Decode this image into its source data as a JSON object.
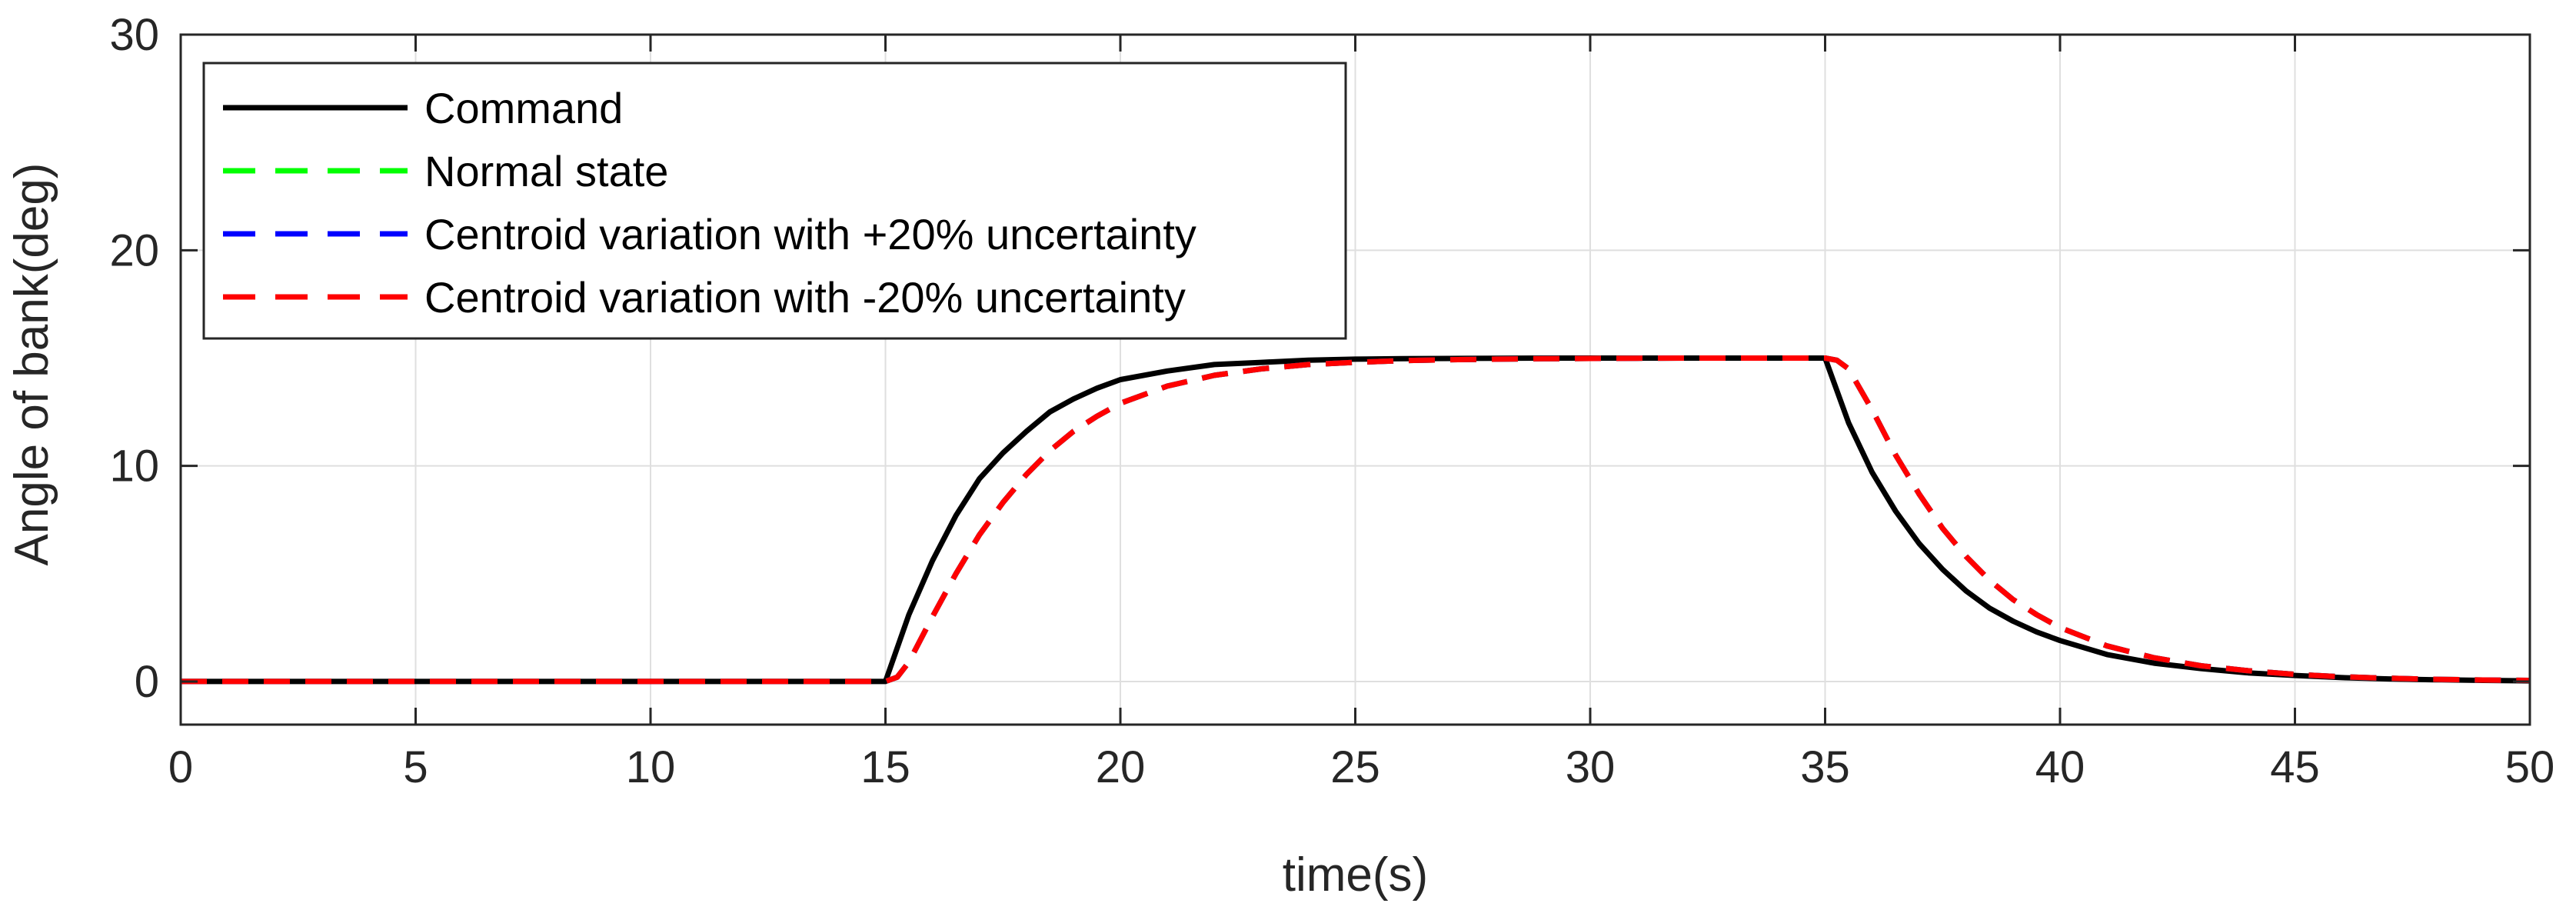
{
  "chart_data": {
    "type": "line",
    "title": "",
    "xlabel": "time(s)",
    "ylabel": "Angle of bank(deg)",
    "xlim": [
      0,
      50
    ],
    "ylim": [
      -2,
      30
    ],
    "xticks": [
      0,
      5,
      10,
      15,
      20,
      25,
      30,
      35,
      40,
      45,
      50
    ],
    "yticks": [
      0,
      10,
      20,
      30
    ],
    "grid": true,
    "legend_position": "top-left",
    "series": [
      {
        "name": "Command",
        "color": "#000000",
        "style": "solid",
        "x": [
          0,
          15,
          15.5,
          16,
          16.5,
          17,
          17.5,
          18,
          18.5,
          19,
          19.5,
          20,
          21,
          22,
          23,
          24,
          25,
          26,
          27,
          28,
          29,
          30,
          31,
          32,
          33,
          34,
          35,
          35.5,
          36,
          36.5,
          37,
          37.5,
          38,
          38.5,
          39,
          39.5,
          40,
          41,
          42,
          43,
          44,
          45,
          46,
          47,
          48,
          49,
          50
        ],
        "y": [
          0,
          0,
          3.1,
          5.6,
          7.7,
          9.4,
          10.6,
          11.6,
          12.5,
          13.1,
          13.6,
          14.0,
          14.4,
          14.7,
          14.8,
          14.9,
          14.95,
          14.97,
          14.98,
          14.99,
          15.0,
          15.0,
          15.0,
          15.0,
          15.0,
          15.0,
          15.0,
          12.0,
          9.7,
          7.9,
          6.4,
          5.2,
          4.2,
          3.4,
          2.8,
          2.3,
          1.9,
          1.25,
          0.85,
          0.6,
          0.4,
          0.28,
          0.18,
          0.12,
          0.08,
          0.05,
          0.03
        ]
      },
      {
        "name": "Normal state",
        "color": "#00ff00",
        "style": "dashed",
        "x": [
          0,
          15,
          15.25,
          15.5,
          16,
          16.5,
          17,
          17.5,
          18,
          18.5,
          19,
          19.5,
          20,
          21,
          22,
          23,
          24,
          25,
          26,
          27,
          28,
          29,
          30,
          31,
          32,
          33,
          34,
          35,
          35.25,
          35.5,
          36,
          36.5,
          37,
          37.5,
          38,
          38.5,
          39,
          39.5,
          40,
          41,
          42,
          43,
          44,
          45,
          46,
          47,
          48,
          49,
          50
        ],
        "y": [
          0,
          0,
          0.2,
          0.9,
          3.0,
          5.0,
          6.8,
          8.3,
          9.6,
          10.7,
          11.6,
          12.3,
          12.9,
          13.7,
          14.2,
          14.5,
          14.7,
          14.8,
          14.88,
          14.92,
          14.95,
          14.97,
          14.98,
          14.99,
          15.0,
          15.0,
          15.0,
          15.0,
          14.9,
          14.5,
          12.6,
          10.5,
          8.7,
          7.1,
          5.8,
          4.7,
          3.8,
          3.1,
          2.5,
          1.65,
          1.1,
          0.73,
          0.5,
          0.33,
          0.22,
          0.15,
          0.1,
          0.07,
          0.05
        ]
      },
      {
        "name": "Centroid variation with +20% uncertainty",
        "color": "#0000ff",
        "style": "dashed",
        "x": [
          0,
          15,
          15.25,
          15.5,
          16,
          16.5,
          17,
          17.5,
          18,
          18.5,
          19,
          19.5,
          20,
          21,
          22,
          23,
          24,
          25,
          26,
          27,
          28,
          29,
          30,
          31,
          32,
          33,
          34,
          35,
          35.25,
          35.5,
          36,
          36.5,
          37,
          37.5,
          38,
          38.5,
          39,
          39.5,
          40,
          41,
          42,
          43,
          44,
          45,
          46,
          47,
          48,
          49,
          50
        ],
        "y": [
          0,
          0,
          0.2,
          0.9,
          3.0,
          5.0,
          6.8,
          8.3,
          9.6,
          10.7,
          11.6,
          12.3,
          12.9,
          13.7,
          14.2,
          14.5,
          14.7,
          14.8,
          14.88,
          14.92,
          14.95,
          14.97,
          14.98,
          14.99,
          15.0,
          15.0,
          15.0,
          15.0,
          14.9,
          14.5,
          12.6,
          10.5,
          8.7,
          7.1,
          5.8,
          4.7,
          3.8,
          3.1,
          2.5,
          1.65,
          1.1,
          0.73,
          0.5,
          0.33,
          0.22,
          0.15,
          0.1,
          0.07,
          0.05
        ]
      },
      {
        "name": "Centroid variation with -20% uncertainty",
        "color": "#ff0000",
        "style": "dashed",
        "x": [
          0,
          15,
          15.25,
          15.5,
          16,
          16.5,
          17,
          17.5,
          18,
          18.5,
          19,
          19.5,
          20,
          21,
          22,
          23,
          24,
          25,
          26,
          27,
          28,
          29,
          30,
          31,
          32,
          33,
          34,
          35,
          35.25,
          35.5,
          36,
          36.5,
          37,
          37.5,
          38,
          38.5,
          39,
          39.5,
          40,
          41,
          42,
          43,
          44,
          45,
          46,
          47,
          48,
          49,
          50
        ],
        "y": [
          0,
          0,
          0.2,
          0.9,
          3.0,
          5.0,
          6.8,
          8.3,
          9.6,
          10.7,
          11.6,
          12.3,
          12.9,
          13.7,
          14.2,
          14.5,
          14.7,
          14.8,
          14.88,
          14.92,
          14.95,
          14.97,
          14.98,
          14.99,
          15.0,
          15.0,
          15.0,
          15.0,
          14.9,
          14.5,
          12.6,
          10.5,
          8.7,
          7.1,
          5.8,
          4.7,
          3.8,
          3.1,
          2.5,
          1.65,
          1.1,
          0.73,
          0.5,
          0.33,
          0.22,
          0.15,
          0.1,
          0.07,
          0.05
        ]
      }
    ]
  }
}
